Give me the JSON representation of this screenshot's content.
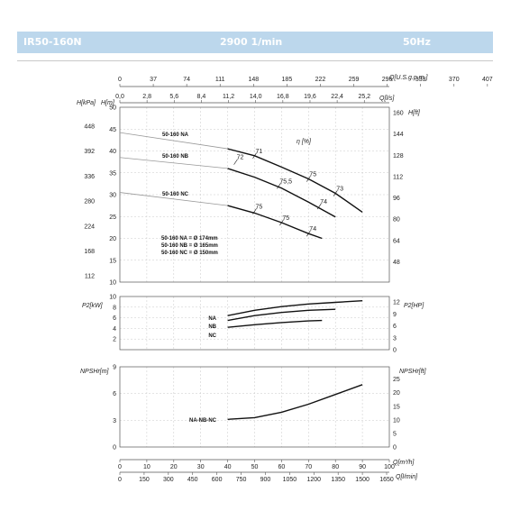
{
  "header": {
    "model": "IR50-160N",
    "speed": "2900 1/min",
    "frequency": "50Hz",
    "bg_color": "#bcd7ec"
  },
  "axes": {
    "top_gpm": {
      "label": "Q[U.S.g.p.m.]",
      "ticks": [
        "0",
        "37",
        "74",
        "111",
        "148",
        "185",
        "222",
        "259",
        "296",
        "333",
        "370",
        "407"
      ]
    },
    "top_ls": {
      "label": "Q[l/s]",
      "ticks": [
        "0,0",
        "2,8",
        "5,6",
        "8,4",
        "11,2",
        "14,0",
        "16,8",
        "19,6",
        "22,4",
        "25,2"
      ]
    },
    "bottom_m3h": {
      "label": "Q[m³/h]",
      "ticks": [
        "0",
        "10",
        "20",
        "30",
        "40",
        "50",
        "60",
        "70",
        "80",
        "90",
        "100"
      ]
    },
    "bottom_lmin": {
      "label": "Q[l/min]",
      "ticks": [
        "0",
        "150",
        "300",
        "450",
        "600",
        "750",
        "900",
        "1050",
        "1200",
        "1350",
        "1500",
        "1650"
      ]
    },
    "head_kpa": {
      "label": "H[kPa]",
      "ticks": [
        "448",
        "392",
        "336",
        "280",
        "224",
        "168",
        "112"
      ]
    },
    "head_m": {
      "label": "H[m]",
      "ticks": [
        "50",
        "45",
        "40",
        "35",
        "30",
        "25",
        "20",
        "15",
        "10"
      ]
    },
    "head_ft": {
      "label": "H[ft]",
      "ticks": [
        "160",
        "144",
        "128",
        "112",
        "96",
        "80",
        "64",
        "48"
      ]
    },
    "power_kw": {
      "label": "P2[kW]",
      "ticks": [
        "10",
        "8",
        "6",
        "4",
        "2"
      ]
    },
    "power_hp": {
      "label": "P2[HP]",
      "ticks": [
        "12",
        "9",
        "6",
        "3",
        "0"
      ]
    },
    "npsh_m": {
      "label": "NPSHr[m]",
      "ticks": [
        "9",
        "6",
        "3",
        "0"
      ]
    },
    "npsh_ft": {
      "label": "NPSHr[ft]",
      "ticks": [
        "25",
        "20",
        "15",
        "10",
        "5",
        "0"
      ]
    }
  },
  "efficiency_label": "η [%]",
  "diameter_notes": [
    "50-160 NA = Ø 174mm",
    "50-160 NB = Ø 165mm",
    "50-160 NC = Ø 150mm"
  ],
  "chart_data": [
    {
      "type": "line",
      "title": "",
      "xlabel": "Q[m³/h]",
      "ylabel": "H[m]",
      "xlim": [
        0,
        100
      ],
      "ylim": [
        10,
        50
      ],
      "grid": true,
      "series": [
        {
          "name": "50-160 NA",
          "x": [
            0,
            40,
            50,
            60,
            70,
            80,
            90
          ],
          "y": [
            44.2,
            40.5,
            38.9,
            36.3,
            33.6,
            30.3,
            26.0
          ]
        },
        {
          "name": "50-160 NB",
          "x": [
            0,
            40,
            50,
            60,
            70,
            80
          ],
          "y": [
            38.5,
            36.0,
            34.0,
            31.5,
            28.3,
            24.9
          ]
        },
        {
          "name": "50-160 NC",
          "x": [
            0,
            40,
            50,
            60,
            70,
            75
          ],
          "y": [
            30.5,
            27.5,
            25.8,
            23.6,
            21.1,
            20.0
          ]
        }
      ],
      "efficiency_marks": [
        {
          "label": "71",
          "x": 50,
          "y": 38.9
        },
        {
          "label": "72",
          "x": 43,
          "y": 37.5
        },
        {
          "label": "75",
          "x": 70,
          "y": 33.6
        },
        {
          "label": "73",
          "x": 80,
          "y": 30.3
        },
        {
          "label": "75,5",
          "x": 59,
          "y": 32.0
        },
        {
          "label": "74",
          "x": 74,
          "y": 27.3
        },
        {
          "label": "75",
          "x": 50,
          "y": 26.2
        },
        {
          "label": "75",
          "x": 60,
          "y": 23.6
        },
        {
          "label": "74",
          "x": 70,
          "y": 21.1
        }
      ]
    },
    {
      "type": "line",
      "title": "",
      "xlabel": "Q[m³/h]",
      "ylabel": "P2[kW]",
      "xlim": [
        0,
        100
      ],
      "ylim": [
        0,
        10
      ],
      "grid": true,
      "series": [
        {
          "name": "NA",
          "x": [
            40,
            50,
            60,
            70,
            80,
            90
          ],
          "y": [
            6.4,
            7.4,
            8.1,
            8.6,
            8.9,
            9.2
          ]
        },
        {
          "name": "NB",
          "x": [
            40,
            50,
            60,
            70,
            80
          ],
          "y": [
            5.5,
            6.4,
            7.0,
            7.4,
            7.6
          ]
        },
        {
          "name": "NC",
          "x": [
            40,
            50,
            60,
            70,
            75
          ],
          "y": [
            4.2,
            4.7,
            5.1,
            5.4,
            5.5
          ]
        }
      ]
    },
    {
      "type": "line",
      "title": "",
      "xlabel": "Q[m³/h]",
      "ylabel": "NPSHr[m]",
      "xlim": [
        0,
        100
      ],
      "ylim": [
        0,
        9
      ],
      "grid": true,
      "series": [
        {
          "name": "NA-NB-NC",
          "x": [
            40,
            50,
            60,
            70,
            80,
            90
          ],
          "y": [
            3.1,
            3.3,
            3.9,
            4.8,
            5.9,
            7.0
          ]
        }
      ]
    }
  ]
}
